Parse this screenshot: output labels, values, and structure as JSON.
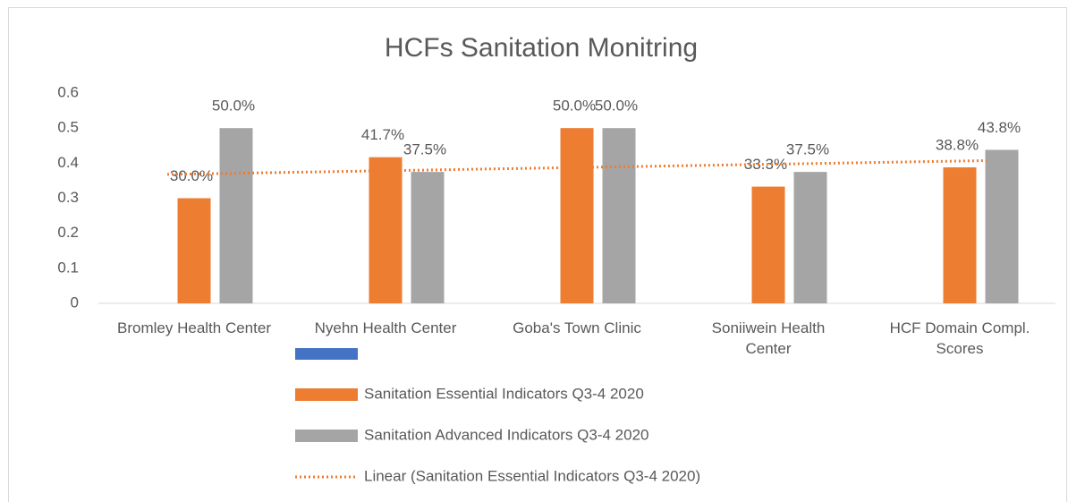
{
  "chart_data": {
    "type": "bar",
    "title": "HCFs Sanitation Monitring",
    "categories": [
      "Bromley Health Center",
      "Nyehn Health Center",
      "Goba's Town Clinic",
      "Soniiwein Health Center",
      "HCF Domain Compl. Scores"
    ],
    "series": [
      {
        "name": "Sanitation Essential Indicators Q3-4 2020",
        "color": "#ed7d31",
        "values": [
          0.3,
          0.417,
          0.5,
          0.333,
          0.388
        ],
        "value_labels": [
          "30.0%",
          "41.7%",
          "50.0%",
          "33.3%",
          "38.8%"
        ]
      },
      {
        "name": "Sanitation Advanced Indicators Q3-4 2020",
        "color": "#a5a5a5",
        "values": [
          0.5,
          0.375,
          0.5,
          0.375,
          0.438
        ],
        "value_labels": [
          "50.0%",
          "37.5%",
          "50.0%",
          "37.5%",
          "43.8%"
        ]
      }
    ],
    "trendline": {
      "name": "Linear (Sanitation Essential Indicators Q3-4 2020)",
      "type": "linear",
      "series": 0,
      "color": "#ed7d31"
    },
    "ylim": [
      0,
      0.6
    ],
    "yticks": [
      0,
      0.1,
      0.2,
      0.3,
      0.4,
      0.5,
      0.6
    ],
    "grid": false,
    "legend": "bottom"
  }
}
